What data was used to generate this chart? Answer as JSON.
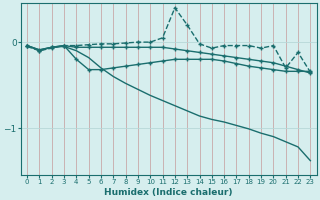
{
  "xlabel": "Humidex (Indice chaleur)",
  "bg_color": "#d6eeee",
  "line_color": "#1a6e6e",
  "grid_color": "#b8d8d8",
  "xlim": [
    -0.5,
    23.5
  ],
  "ylim": [
    -1.55,
    0.45
  ],
  "yticks": [
    0,
    -1
  ],
  "xticks": [
    0,
    1,
    2,
    3,
    4,
    5,
    6,
    7,
    8,
    9,
    10,
    11,
    12,
    13,
    14,
    15,
    16,
    17,
    18,
    19,
    20,
    21,
    22,
    23
  ],
  "line_spike_x": [
    0,
    1,
    2,
    3,
    4,
    5,
    6,
    7,
    8,
    9,
    10,
    11,
    12,
    13,
    14,
    15,
    16,
    17,
    18,
    19,
    20,
    21,
    22,
    23
  ],
  "line_spike_y": [
    -0.05,
    -0.1,
    -0.07,
    -0.04,
    -0.04,
    -0.03,
    -0.02,
    -0.02,
    -0.01,
    0.0,
    0.0,
    0.05,
    0.4,
    0.2,
    -0.02,
    -0.07,
    -0.04,
    -0.04,
    -0.04,
    -0.07,
    -0.04,
    -0.3,
    -0.12,
    -0.35
  ],
  "line_flat_x": [
    0,
    1,
    2,
    3,
    4,
    5,
    6,
    7,
    8,
    9,
    10,
    11,
    12,
    13,
    14,
    15,
    16,
    17,
    18,
    19,
    20,
    21,
    22,
    23
  ],
  "line_flat_y": [
    -0.04,
    -0.09,
    -0.06,
    -0.04,
    -0.06,
    -0.06,
    -0.06,
    -0.06,
    -0.06,
    -0.06,
    -0.06,
    -0.06,
    -0.08,
    -0.1,
    -0.12,
    -0.14,
    -0.16,
    -0.18,
    -0.2,
    -0.22,
    -0.24,
    -0.28,
    -0.32,
    -0.36
  ],
  "line_dip_x": [
    0,
    1,
    2,
    3,
    4,
    5,
    6,
    7,
    8,
    9,
    10,
    11,
    12,
    13,
    14,
    15,
    16,
    17,
    18,
    19,
    20,
    21,
    22,
    23
  ],
  "line_dip_y": [
    -0.04,
    -0.1,
    -0.06,
    -0.04,
    -0.2,
    -0.32,
    -0.32,
    -0.3,
    -0.28,
    -0.26,
    -0.24,
    -0.22,
    -0.2,
    -0.2,
    -0.2,
    -0.2,
    -0.22,
    -0.25,
    -0.28,
    -0.3,
    -0.32,
    -0.34,
    -0.34,
    -0.34
  ],
  "line_diag_x": [
    0,
    1,
    2,
    3,
    4,
    5,
    6,
    7,
    8,
    9,
    10,
    11,
    12,
    13,
    14,
    15,
    16,
    17,
    18,
    19,
    20,
    21,
    22,
    23
  ],
  "line_diag_y": [
    -0.04,
    -0.09,
    -0.06,
    -0.05,
    -0.1,
    -0.18,
    -0.3,
    -0.4,
    -0.48,
    -0.55,
    -0.62,
    -0.68,
    -0.74,
    -0.8,
    -0.86,
    -0.9,
    -0.93,
    -0.97,
    -1.01,
    -1.06,
    -1.1,
    -1.16,
    -1.22,
    -1.38
  ]
}
